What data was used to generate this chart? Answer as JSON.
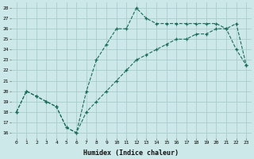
{
  "xlabel": "Humidex (Indice chaleur)",
  "bg_color": "#cce8e8",
  "grid_color": "#aacccc",
  "line_color": "#1a6b5a",
  "xlim": [
    -0.5,
    23.5
  ],
  "ylim": [
    15.5,
    28.5
  ],
  "xticks": [
    0,
    1,
    2,
    3,
    4,
    5,
    6,
    7,
    8,
    9,
    10,
    11,
    12,
    13,
    14,
    15,
    16,
    17,
    18,
    19,
    20,
    21,
    22,
    23
  ],
  "yticks": [
    16,
    17,
    18,
    19,
    20,
    21,
    22,
    23,
    24,
    25,
    26,
    27,
    28
  ],
  "line1_x": [
    0,
    1,
    2,
    3,
    4,
    5,
    6,
    7,
    8,
    9,
    10,
    11,
    12,
    13,
    14,
    15,
    16,
    17,
    18,
    19,
    20,
    21,
    22,
    23
  ],
  "line1_y": [
    18,
    20,
    19.5,
    19,
    18.5,
    16.5,
    16,
    20,
    23,
    24.5,
    26,
    26,
    28,
    27,
    26.5,
    26.5,
    26.5,
    26.5,
    26.5,
    26.5,
    26.5,
    26,
    24,
    22.5
  ],
  "line2_x": [
    0,
    1,
    2,
    3,
    4,
    5,
    6,
    7,
    8,
    9,
    10,
    11,
    12,
    13,
    14,
    15,
    16,
    17,
    18,
    19,
    20,
    21,
    22,
    23
  ],
  "line2_y": [
    18,
    20,
    19.5,
    19,
    18.5,
    16.5,
    16,
    18,
    19,
    20,
    21,
    22,
    23,
    23.5,
    24,
    24.5,
    25,
    25,
    25.5,
    25.5,
    26,
    26,
    26.5,
    22.5
  ]
}
